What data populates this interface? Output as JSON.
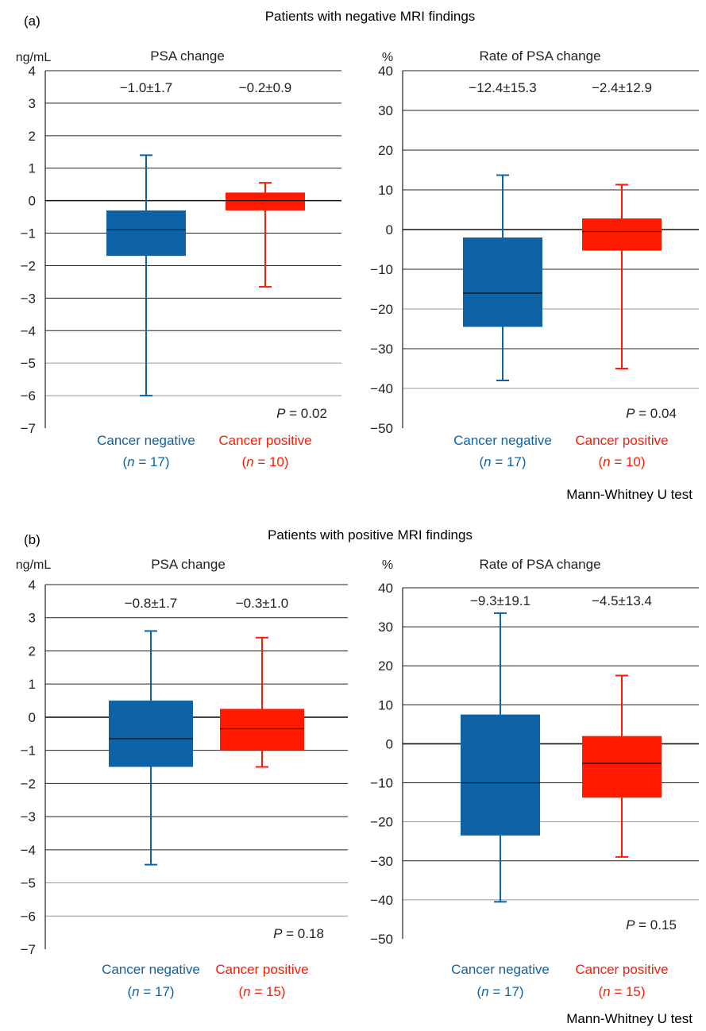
{
  "colors": {
    "negative": "#0d63a5",
    "positive": "#ff1a00",
    "grid": "#222222",
    "grid_light": "#9a9a9a"
  },
  "footer_test": "Mann-Whitney U test",
  "panels": [
    {
      "tag": "(a)",
      "title": "Patients with negative MRI findings"
    },
    {
      "tag": "(b)",
      "title": "Patients with positive MRI findings"
    }
  ],
  "chart_data": [
    {
      "type": "box",
      "panel": "(a)",
      "title": "PSA change",
      "ylabel": "ng/mL",
      "ylim": [
        -7,
        4
      ],
      "yticks": [
        4,
        3,
        2,
        1,
        0,
        -1,
        -2,
        -3,
        -4,
        -5,
        -6,
        -7
      ],
      "categories": [
        "Cancer negative",
        "Cancer positive"
      ],
      "n_labels": [
        "17",
        "10"
      ],
      "summary_labels": [
        "−1.0±1.7",
        "−0.2±0.9"
      ],
      "p_value": "0.02",
      "boxes": [
        {
          "whisker_low": -6.0,
          "q1": -1.7,
          "median": -0.9,
          "q3": -0.3,
          "whisker_high": 1.4
        },
        {
          "whisker_low": -2.65,
          "q1": -0.3,
          "median": 0.0,
          "q3": 0.25,
          "whisker_high": 0.55
        }
      ]
    },
    {
      "type": "box",
      "panel": "(a)",
      "title": "Rate of PSA change",
      "ylabel": "%",
      "ylim": [
        -50,
        40
      ],
      "yticks": [
        40,
        30,
        20,
        10,
        0,
        -10,
        -20,
        -30,
        -40,
        -50
      ],
      "categories": [
        "Cancer negative",
        "Cancer positive"
      ],
      "n_labels": [
        "17",
        "10"
      ],
      "summary_labels": [
        "−12.4±15.3",
        "−2.4±12.9"
      ],
      "p_value": "0.04",
      "boxes": [
        {
          "whisker_low": -38,
          "q1": -24.5,
          "median": -16,
          "q3": -2,
          "whisker_high": 13.7
        },
        {
          "whisker_low": -35,
          "q1": -5.3,
          "median": -0.5,
          "q3": 2.8,
          "whisker_high": 11.3
        }
      ]
    },
    {
      "type": "box",
      "panel": "(b)",
      "title": "PSA change",
      "ylabel": "ng/mL",
      "ylim": [
        -7,
        4
      ],
      "yticks": [
        4,
        3,
        2,
        1,
        0,
        -1,
        -2,
        -3,
        -4,
        -5,
        -6,
        -7
      ],
      "categories": [
        "Cancer negative",
        "Cancer positive"
      ],
      "n_labels": [
        "17",
        "15"
      ],
      "summary_labels": [
        "−0.8±1.7",
        "−0.3±1.0"
      ],
      "p_value": "0.18",
      "boxes": [
        {
          "whisker_low": -4.45,
          "q1": -1.5,
          "median": -0.65,
          "q3": 0.5,
          "whisker_high": 2.6
        },
        {
          "whisker_low": -1.5,
          "q1": -1.0,
          "median": -0.35,
          "q3": 0.25,
          "whisker_high": 2.4
        }
      ]
    },
    {
      "type": "box",
      "panel": "(b)",
      "title": "Rate of PSA change",
      "ylabel": "%",
      "ylim": [
        -50,
        40
      ],
      "yticks": [
        40,
        30,
        20,
        10,
        0,
        -10,
        -20,
        -30,
        -40,
        -50
      ],
      "categories": [
        "Cancer negative",
        "Cancer positive"
      ],
      "n_labels": [
        "17",
        "15"
      ],
      "summary_labels": [
        "−9.3±19.1",
        "−4.5±13.4"
      ],
      "p_value": "0.15",
      "boxes": [
        {
          "whisker_low": -40.5,
          "q1": -23.5,
          "median": -10,
          "q3": 7.5,
          "whisker_high": 33.5
        },
        {
          "whisker_low": -29,
          "q1": -13.8,
          "median": -5,
          "q3": 2,
          "whisker_high": 17.5
        }
      ]
    }
  ]
}
